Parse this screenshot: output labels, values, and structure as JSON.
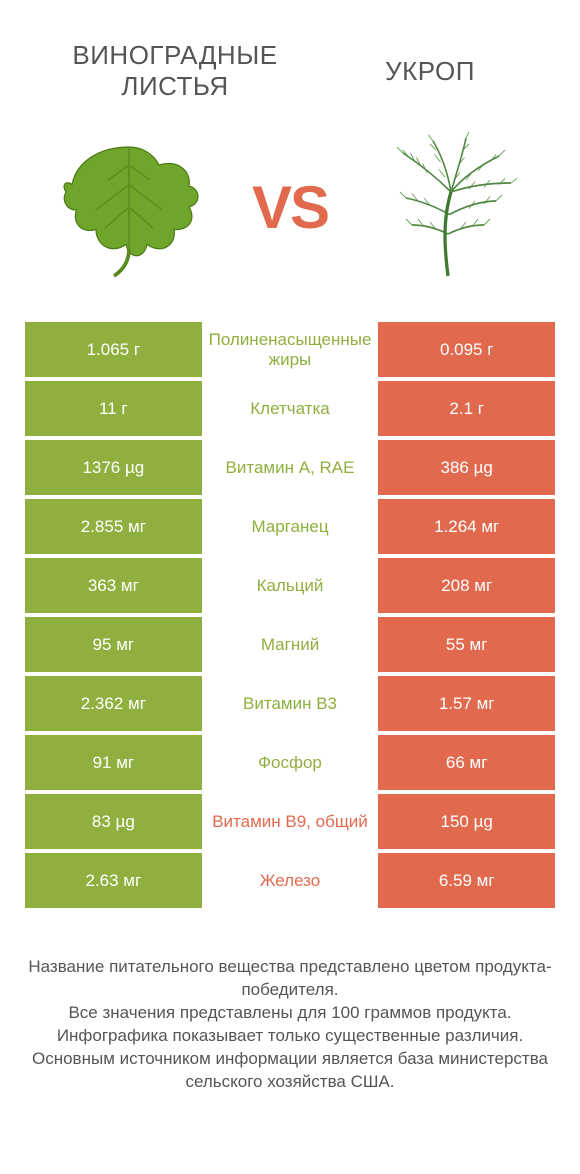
{
  "colors": {
    "left": "#8fb03e",
    "right": "#e16a4e",
    "mid_bg": "#ffffff",
    "text_default": "#555555"
  },
  "header": {
    "left_title": "Виноградные листья",
    "right_title": "Укроп",
    "vs": "VS"
  },
  "rows": [
    {
      "left": "1.065 г",
      "label": "Полиненасыщенные жиры",
      "right": "0.095 г",
      "winner": "left"
    },
    {
      "left": "11 г",
      "label": "Клетчатка",
      "right": "2.1 г",
      "winner": "left"
    },
    {
      "left": "1376 µg",
      "label": "Витамин A, RAE",
      "right": "386 µg",
      "winner": "left"
    },
    {
      "left": "2.855 мг",
      "label": "Марганец",
      "right": "1.264 мг",
      "winner": "left"
    },
    {
      "left": "363 мг",
      "label": "Кальций",
      "right": "208 мг",
      "winner": "left"
    },
    {
      "left": "95 мг",
      "label": "Магний",
      "right": "55 мг",
      "winner": "left"
    },
    {
      "left": "2.362 мг",
      "label": "Витамин B3",
      "right": "1.57 мг",
      "winner": "left"
    },
    {
      "left": "91 мг",
      "label": "Фосфор",
      "right": "66 мг",
      "winner": "left"
    },
    {
      "left": "83 µg",
      "label": "Витамин B9, общий",
      "right": "150 µg",
      "winner": "right"
    },
    {
      "left": "2.63 мг",
      "label": "Железо",
      "right": "6.59 мг",
      "winner": "right"
    }
  ],
  "footer": [
    "Название питательного вещества представлено цветом продукта-победителя.",
    "Все значения представлены для 100 граммов продукта.",
    "Инфографика показывает только существенные различия.",
    "Основным источником информации является база министерства сельского хозяйства США."
  ]
}
